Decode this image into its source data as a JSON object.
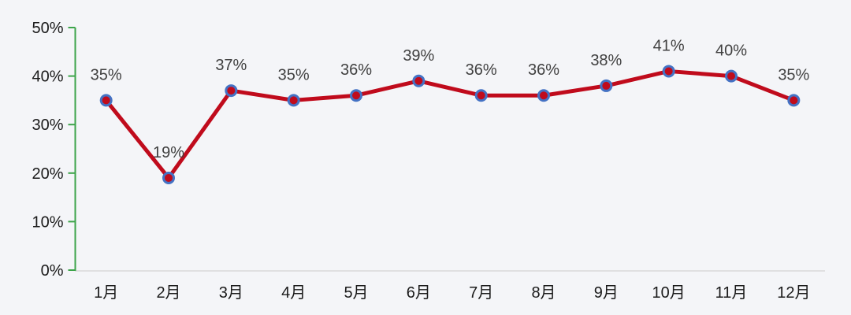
{
  "chart_data": {
    "type": "line",
    "title": "",
    "categories": [
      "1月",
      "2月",
      "3月",
      "4月",
      "5月",
      "6月",
      "7月",
      "8月",
      "9月",
      "10月",
      "11月",
      "12月"
    ],
    "series": [
      {
        "name": "monthly-percentage",
        "values": [
          35,
          19,
          37,
          35,
          36,
          39,
          36,
          36,
          38,
          41,
          40,
          35
        ]
      }
    ],
    "data_labels": [
      "35%",
      "19%",
      "37%",
      "35%",
      "36%",
      "39%",
      "36%",
      "36%",
      "38%",
      "41%",
      "40%",
      "35%"
    ],
    "y_tick_labels": [
      "0%",
      "10%",
      "20%",
      "30%",
      "40%",
      "50%"
    ],
    "y_tick_values": [
      0,
      10,
      20,
      30,
      40,
      50
    ],
    "ylim": [
      0,
      50
    ],
    "xlabel": "",
    "ylabel": "",
    "grid": false,
    "legend": "none",
    "colors": {
      "background": "#f4f5f8",
      "line": "#c00b1c",
      "marker_fill": "#c00b1c",
      "marker_ring": "#4472c4",
      "y_axis": "#3da44a",
      "x_axis_baseline": "#d9d9d9",
      "data_label_text": "#404040",
      "axis_label_text": "#1a1a1a"
    }
  }
}
